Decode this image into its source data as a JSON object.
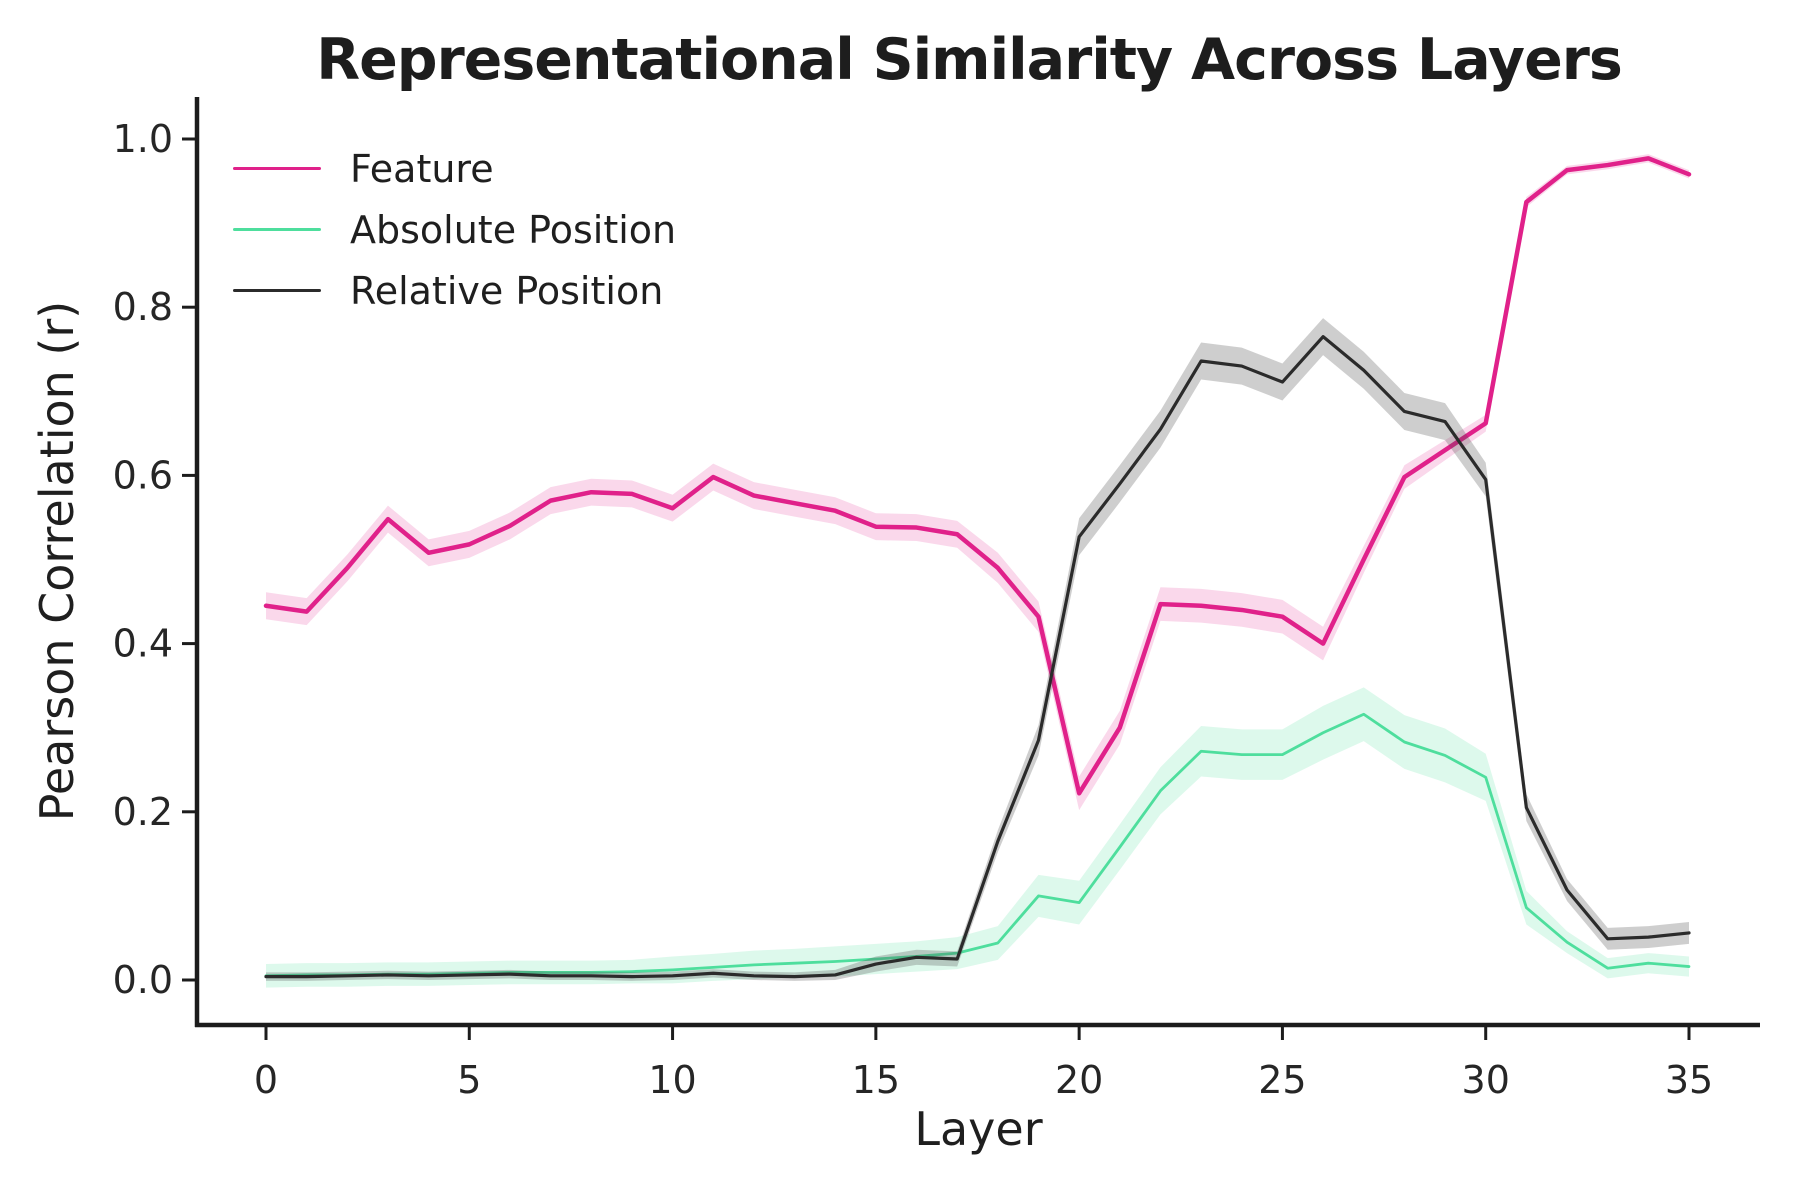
{
  "chart_data": {
    "type": "line",
    "title": "Representational Similarity Across Layers",
    "xlabel": "Layer",
    "ylabel": "Pearson Correlation (r)",
    "xlim": [
      0,
      35
    ],
    "ylim": [
      0.0,
      1.0
    ],
    "grid": false,
    "legend_position": "upper left",
    "xticks": [
      0,
      5,
      10,
      15,
      20,
      25,
      30,
      35
    ],
    "xticklabels": [
      "0",
      "5",
      "10",
      "15",
      "20",
      "25",
      "30",
      "35"
    ],
    "yticks": [
      0.0,
      0.2,
      0.4,
      0.6,
      0.8,
      1.0
    ],
    "yticklabels": [
      "0.0",
      "0.2",
      "0.4",
      "0.6",
      "0.8",
      "1.0"
    ],
    "x": [
      0,
      1,
      2,
      3,
      4,
      5,
      6,
      7,
      8,
      9,
      10,
      11,
      12,
      13,
      14,
      15,
      16,
      17,
      18,
      19,
      20,
      21,
      22,
      23,
      24,
      25,
      26,
      27,
      28,
      29,
      30,
      31,
      32,
      33,
      34,
      35
    ],
    "series": [
      {
        "name": "Feature",
        "color": "#E0218A",
        "band_color": "rgba(232,62,156,0.20)",
        "values": [
          0.445,
          0.438,
          0.49,
          0.548,
          0.508,
          0.518,
          0.54,
          0.57,
          0.58,
          0.578,
          0.561,
          0.598,
          0.576,
          0.567,
          0.558,
          0.539,
          0.538,
          0.53,
          0.49,
          0.432,
          0.222,
          0.3,
          0.447,
          0.445,
          0.44,
          0.432,
          0.4,
          0.5,
          0.598,
          0.63,
          0.662,
          0.925,
          0.963,
          0.969,
          0.977,
          0.958
        ],
        "band_halfwidth": [
          0.016,
          0.016,
          0.016,
          0.016,
          0.016,
          0.016,
          0.016,
          0.016,
          0.016,
          0.016,
          0.016,
          0.016,
          0.016,
          0.016,
          0.016,
          0.016,
          0.016,
          0.016,
          0.018,
          0.018,
          0.02,
          0.02,
          0.02,
          0.02,
          0.02,
          0.02,
          0.02,
          0.016,
          0.014,
          0.012,
          0.01,
          0.006,
          0.005,
          0.005,
          0.005,
          0.005
        ]
      },
      {
        "name": "Absolute Position",
        "color": "#4EDE9D",
        "band_color": "rgba(85,224,158,0.20)",
        "values": [
          0.005,
          0.006,
          0.006,
          0.007,
          0.007,
          0.008,
          0.009,
          0.009,
          0.009,
          0.01,
          0.012,
          0.015,
          0.018,
          0.02,
          0.022,
          0.025,
          0.028,
          0.032,
          0.044,
          0.1,
          0.092,
          0.158,
          0.225,
          0.272,
          0.268,
          0.268,
          0.294,
          0.316,
          0.283,
          0.267,
          0.241,
          0.086,
          0.045,
          0.014,
          0.02,
          0.016
        ],
        "band_halfwidth": [
          0.014,
          0.014,
          0.014,
          0.014,
          0.014,
          0.014,
          0.014,
          0.014,
          0.014,
          0.014,
          0.016,
          0.016,
          0.017,
          0.017,
          0.018,
          0.018,
          0.018,
          0.019,
          0.02,
          0.025,
          0.026,
          0.027,
          0.028,
          0.03,
          0.03,
          0.03,
          0.032,
          0.032,
          0.032,
          0.032,
          0.028,
          0.02,
          0.013,
          0.012,
          0.012,
          0.012
        ]
      },
      {
        "name": "Relative Position",
        "color": "#2B2B2B",
        "band_color": "rgba(80,80,80,0.28)",
        "values": [
          0.004,
          0.004,
          0.005,
          0.006,
          0.005,
          0.006,
          0.007,
          0.005,
          0.005,
          0.004,
          0.005,
          0.008,
          0.005,
          0.004,
          0.006,
          0.019,
          0.027,
          0.025,
          0.165,
          0.285,
          0.527,
          0.59,
          0.655,
          0.736,
          0.73,
          0.711,
          0.765,
          0.725,
          0.676,
          0.664,
          0.595,
          0.205,
          0.107,
          0.049,
          0.051,
          0.056
        ],
        "band_halfwidth": [
          0.005,
          0.005,
          0.005,
          0.005,
          0.005,
          0.005,
          0.005,
          0.005,
          0.005,
          0.005,
          0.005,
          0.005,
          0.005,
          0.005,
          0.006,
          0.009,
          0.009,
          0.009,
          0.013,
          0.018,
          0.022,
          0.022,
          0.022,
          0.022,
          0.022,
          0.022,
          0.022,
          0.022,
          0.022,
          0.022,
          0.02,
          0.016,
          0.013,
          0.013,
          0.013,
          0.013
        ]
      }
    ],
    "colors": {
      "axis": "#1c1c1c",
      "tick_text": "#262626",
      "title_text": "#1d1d1d",
      "background": "#ffffff"
    }
  }
}
